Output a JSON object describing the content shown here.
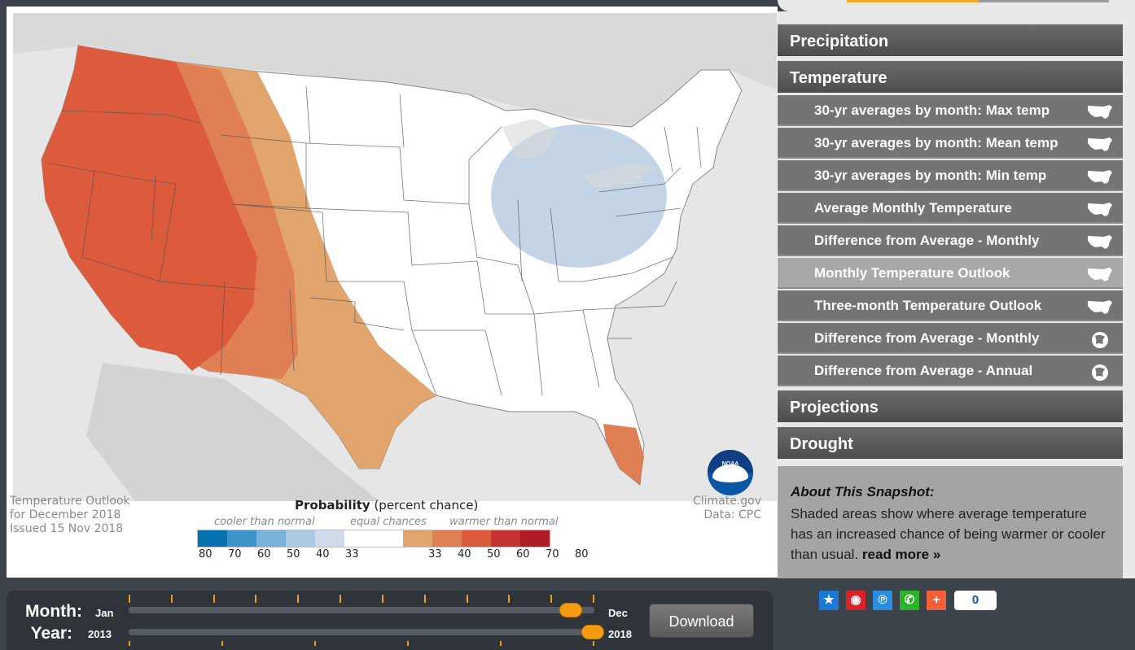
{
  "map": {
    "caption_line1": "Temperature Outlook",
    "caption_line2": "for December 2018",
    "caption_line3": "Issued 15 Nov 2018",
    "credit_line1": "Climate.gov",
    "credit_line2": "Data: CPC",
    "legend_title_bold": "Probability",
    "legend_title_rest": " (percent chance)",
    "legend_cooler": "cooler than normal",
    "legend_equal": "equal chances",
    "legend_warmer": "warmer than normal",
    "legend_ticks_cool": [
      "80",
      "70",
      "60",
      "50",
      "40",
      "33"
    ],
    "legend_ticks_warm": [
      "33",
      "40",
      "50",
      "60",
      "70",
      "80"
    ],
    "legend_colors": [
      "#0571b0",
      "#3f95c9",
      "#79b3dc",
      "#a9c9e5",
      "#d0dceb",
      "#ffffff",
      "#ffffff",
      "#e2a46d",
      "#e07f53",
      "#dc5b3c",
      "#c73232",
      "#b01b24"
    ],
    "logo_text": "NOAA"
  },
  "sidebar": {
    "categories": [
      {
        "label": "Precipitation"
      },
      {
        "label": "Temperature"
      },
      {
        "label": "Projections"
      },
      {
        "label": "Drought"
      }
    ],
    "items": [
      {
        "label": "30-yr averages by month: Max temp",
        "icon": "us-map-icon"
      },
      {
        "label": "30-yr averages by month: Mean temp",
        "icon": "us-map-icon"
      },
      {
        "label": "30-yr averages by month: Min temp",
        "icon": "us-map-icon"
      },
      {
        "label": "Average Monthly Temperature",
        "icon": "us-map-icon"
      },
      {
        "label": "Difference from Average - Monthly",
        "icon": "us-map-icon"
      },
      {
        "label": "Monthly Temperature Outlook",
        "icon": "us-map-icon",
        "active": true
      },
      {
        "label": "Three-month Temperature Outlook",
        "icon": "us-map-icon"
      },
      {
        "label": "Difference from Average - Monthly",
        "icon": "globe-icon"
      },
      {
        "label": "Difference from Average - Annual",
        "icon": "globe-icon"
      }
    ],
    "about": {
      "title": "About This Snapshot:",
      "text": "Shaded areas show where average temperature has an increased chance of being warmer or cooler than usual.",
      "more": "read more »"
    }
  },
  "share": {
    "buttons": [
      "star-icon",
      "weibo-icon",
      "tencent-icon",
      "wechat-icon",
      "plus-icon"
    ],
    "count": "0"
  },
  "controls": {
    "month_label": "Month:",
    "year_label": "Year:",
    "month_start": "Jan",
    "month_end": "Dec",
    "year_start": "2013",
    "year_end": "2018",
    "month_value": 0.95,
    "year_value": 1.0,
    "download_label": "Download"
  }
}
